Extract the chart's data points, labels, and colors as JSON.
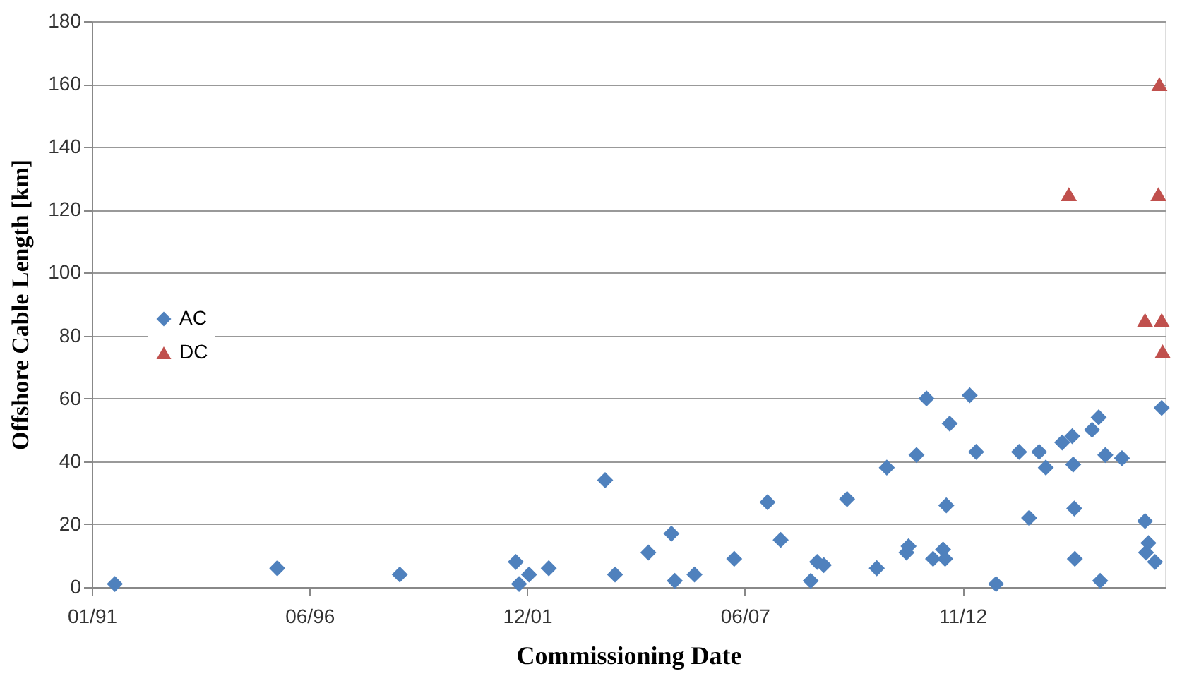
{
  "chart_data": {
    "type": "scatter",
    "xlabel": "Commissioning Date",
    "ylabel": "Offshore Cable Length [km]",
    "xlim": [
      "1991-01-01",
      "2018-01-01"
    ],
    "xticks": [
      {
        "value": "1991-01-01",
        "label": "01/91"
      },
      {
        "value": "1996-06-23",
        "label": "06/96"
      },
      {
        "value": "2001-12-14",
        "label": "12/01"
      },
      {
        "value": "2007-06-06",
        "label": "06/07"
      },
      {
        "value": "2012-11-26",
        "label": "11/12"
      }
    ],
    "ylim": [
      0,
      180
    ],
    "yticks": [
      0,
      20,
      40,
      60,
      80,
      100,
      120,
      140,
      160,
      180
    ],
    "grid": "y",
    "legend": "left",
    "series": [
      {
        "name": "AC",
        "color": "#4f81bd",
        "marker": "diamond",
        "x": [
          "1991-08",
          "1995-09",
          "1998-10",
          "2001-09",
          "2001-10",
          "2002-01",
          "2002-07",
          "2003-12",
          "2004-03",
          "2005-01",
          "2005-08",
          "2005-09",
          "2006-03",
          "2007-03",
          "2008-01",
          "2008-05",
          "2009-02",
          "2009-04",
          "2009-06",
          "2010-01",
          "2010-10",
          "2011-01",
          "2011-07",
          "2011-07-20",
          "2011-10",
          "2012-01",
          "2012-03",
          "2012-06",
          "2012-06-20",
          "2012-07",
          "2012-08",
          "2013-02",
          "2013-04",
          "2013-10",
          "2014-05",
          "2014-08",
          "2014-11",
          "2015-01",
          "2015-06",
          "2015-09",
          "2015-09-10",
          "2015-09-20",
          "2015-09-25",
          "2016-03",
          "2016-05",
          "2016-05-15",
          "2016-07",
          "2016-12",
          "2017-07",
          "2017-07-10",
          "2017-08",
          "2017-09",
          "2017-10",
          "2017-12"
        ],
        "values": [
          1,
          6,
          4,
          8,
          1,
          4,
          6,
          34,
          4,
          11,
          17,
          2,
          4,
          9,
          27,
          15,
          2,
          8,
          7,
          28,
          6,
          38,
          11,
          13,
          42,
          60,
          9,
          12,
          9,
          26,
          52,
          61,
          43,
          1,
          43,
          22,
          43,
          38,
          46,
          48,
          39,
          25,
          9,
          50,
          54,
          2,
          42,
          41,
          21,
          11,
          14,
          null,
          8,
          57
        ]
      },
      {
        "name": "DC",
        "color": "#c0504d",
        "marker": "triangle",
        "x": [
          "2015-08",
          "2017-07",
          "2017-11",
          "2017-11-10",
          "2017-12",
          "2017-12-10"
        ],
        "values": [
          125,
          85,
          125,
          160,
          85,
          75
        ]
      }
    ]
  }
}
